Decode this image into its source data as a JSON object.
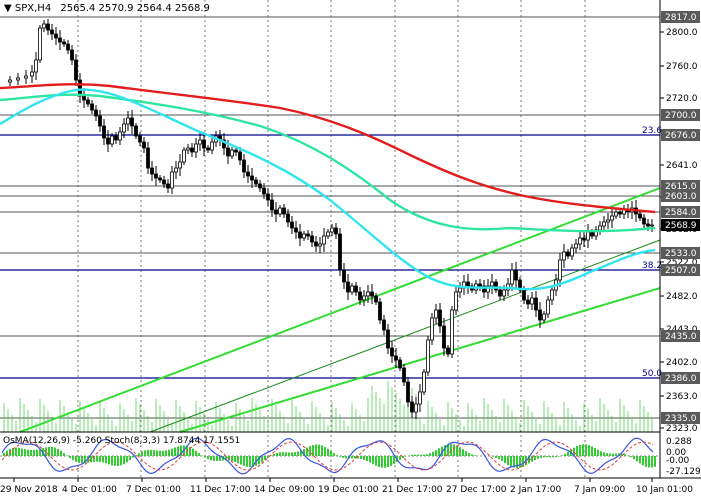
{
  "header": {
    "symbol": "SPX,H4",
    "ohlc": "2565.4 2570.9 2564.4 2568.9"
  },
  "indicator": {
    "label": "OsMA(12,26,9) -5.260  Stoch(8,3,3) 17.8744 17.1551"
  },
  "price_axis": {
    "ticks": [
      "2800.0",
      "2760.0",
      "2720.0",
      "2641.0",
      "2601.0",
      "2562.0",
      "2522.0",
      "2482.0",
      "2443.0",
      "2402.0",
      "2363.0",
      "2323.0"
    ],
    "tags": [
      "2817.0",
      "2700.0",
      "2676.0",
      "2615.0",
      "2603.0",
      "2584.0",
      "2568.9",
      "2533.0",
      "2507.0",
      "2435.0",
      "2386.0",
      "2335.0"
    ],
    "current": "2568.9",
    "osc_ticks": [
      "0.288",
      "0.00",
      "-0.00",
      "-27.129"
    ]
  },
  "fibo": {
    "f236": "23.6",
    "f382": "38.2",
    "f500": "50.0"
  },
  "time_axis": [
    "29 Nov 2018",
    "4 Dec 01:00",
    "7 Dec 01:00",
    "11 Dec 17:00",
    "14 Dec 09:00",
    "19 Dec 01:00",
    "21 Dec 17:00",
    "27 Dec 17:00",
    "2 Jan 17:00",
    "7 Jan 09:00",
    "10 Jan 01:00"
  ],
  "colors": {
    "ema200": "#e31c1c",
    "ema144": "#2ee6a0",
    "ema50": "#30e5f0",
    "channel": "#33dd33",
    "candle": "#000000",
    "tag_bg": "#5a5a5a",
    "current_bg": "#000000",
    "fib_line": "#00008b"
  }
}
